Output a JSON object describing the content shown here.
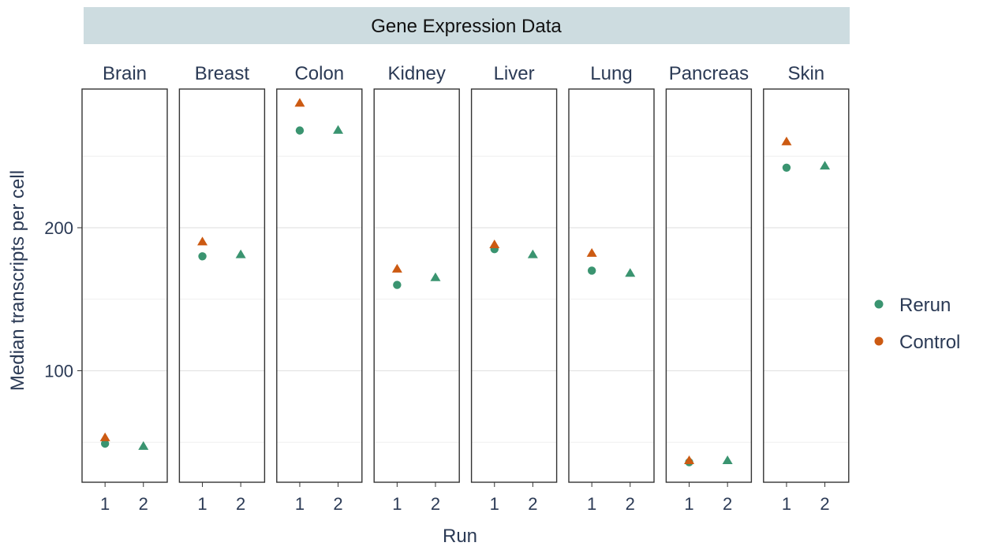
{
  "chart_data": {
    "type": "scatter",
    "title": "Gene Expression Data",
    "xlabel": "Run",
    "ylabel": "Median transcripts per cell",
    "x_categories": [
      "1",
      "2"
    ],
    "y_ticks": [
      100,
      200
    ],
    "ylim": [
      22,
      297
    ],
    "grid": true,
    "legend_position": "right",
    "series": [
      {
        "name": "Rerun",
        "color": "#3a9470",
        "marker": "circle"
      },
      {
        "name": "Control",
        "color": "#cc5a12",
        "marker": "triangle"
      }
    ],
    "facets": [
      {
        "name": "Brain",
        "points": [
          {
            "x": "1",
            "y": 49,
            "series": "Rerun",
            "shape": "circle"
          },
          {
            "x": "1",
            "y": 53,
            "series": "Control",
            "shape": "triangle"
          },
          {
            "x": "2",
            "y": 47,
            "series": "Rerun",
            "shape": "triangle"
          }
        ]
      },
      {
        "name": "Breast",
        "points": [
          {
            "x": "1",
            "y": 180,
            "series": "Rerun",
            "shape": "circle"
          },
          {
            "x": "1",
            "y": 190,
            "series": "Control",
            "shape": "triangle"
          },
          {
            "x": "2",
            "y": 181,
            "series": "Rerun",
            "shape": "triangle"
          }
        ]
      },
      {
        "name": "Colon",
        "points": [
          {
            "x": "1",
            "y": 268,
            "series": "Rerun",
            "shape": "circle"
          },
          {
            "x": "1",
            "y": 287,
            "series": "Control",
            "shape": "triangle"
          },
          {
            "x": "2",
            "y": 268,
            "series": "Rerun",
            "shape": "triangle"
          }
        ]
      },
      {
        "name": "Kidney",
        "points": [
          {
            "x": "1",
            "y": 160,
            "series": "Rerun",
            "shape": "circle"
          },
          {
            "x": "1",
            "y": 171,
            "series": "Control",
            "shape": "triangle"
          },
          {
            "x": "2",
            "y": 165,
            "series": "Rerun",
            "shape": "triangle"
          }
        ]
      },
      {
        "name": "Liver",
        "points": [
          {
            "x": "1",
            "y": 185,
            "series": "Rerun",
            "shape": "circle"
          },
          {
            "x": "1",
            "y": 188,
            "series": "Control",
            "shape": "triangle"
          },
          {
            "x": "2",
            "y": 181,
            "series": "Rerun",
            "shape": "triangle"
          }
        ]
      },
      {
        "name": "Lung",
        "points": [
          {
            "x": "1",
            "y": 170,
            "series": "Rerun",
            "shape": "circle"
          },
          {
            "x": "1",
            "y": 182,
            "series": "Control",
            "shape": "triangle"
          },
          {
            "x": "2",
            "y": 168,
            "series": "Rerun",
            "shape": "triangle"
          }
        ]
      },
      {
        "name": "Pancreas",
        "points": [
          {
            "x": "1",
            "y": 36,
            "series": "Rerun",
            "shape": "circle"
          },
          {
            "x": "1",
            "y": 37,
            "series": "Control",
            "shape": "triangle"
          },
          {
            "x": "2",
            "y": 37,
            "series": "Rerun",
            "shape": "triangle"
          }
        ]
      },
      {
        "name": "Skin",
        "points": [
          {
            "x": "1",
            "y": 242,
            "series": "Rerun",
            "shape": "circle"
          },
          {
            "x": "1",
            "y": 260,
            "series": "Control",
            "shape": "triangle"
          },
          {
            "x": "2",
            "y": 243,
            "series": "Rerun",
            "shape": "triangle"
          }
        ]
      }
    ]
  }
}
